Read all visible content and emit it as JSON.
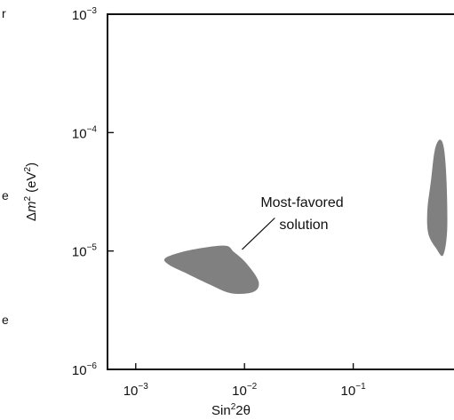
{
  "chart_data": {
    "type": "area",
    "title": "",
    "xlabel": {
      "base": "Sin",
      "sup": "2",
      "rest": "2θ"
    },
    "ylabel": {
      "delta": "Δ",
      "m": "m",
      "sup": "2",
      "unit_open": " (eV",
      "unit_sup": "2",
      "unit_close": ")"
    },
    "x_scale": "log",
    "y_scale": "log",
    "xlim": [
      0.00055,
      1.0
    ],
    "ylim": [
      1e-06,
      0.001
    ],
    "x_ticks": [
      {
        "value": 0.001,
        "base": "10",
        "exp": "−3"
      },
      {
        "value": 0.01,
        "base": "10",
        "exp": "−2"
      },
      {
        "value": 0.1,
        "base": "10",
        "exp": "−1"
      }
    ],
    "y_ticks": [
      {
        "value": 0.001,
        "base": "10",
        "exp": "−3"
      },
      {
        "value": 0.0001,
        "base": "10",
        "exp": "−4"
      },
      {
        "value": 1e-05,
        "base": "10",
        "exp": "−5"
      },
      {
        "value": 1e-06,
        "base": "10",
        "exp": "−6"
      }
    ],
    "grid": false,
    "fill_color": "#808080",
    "regions": [
      {
        "points": [
          [
            0.0019,
            8.8e-06
          ],
          [
            0.0032,
            1.02e-05
          ],
          [
            0.0065,
            1.11e-05
          ],
          [
            0.008,
            9.8e-06
          ],
          [
            0.0105,
            7.8e-06
          ],
          [
            0.0135,
            5.5e-06
          ],
          [
            0.012,
            4.5e-06
          ],
          [
            0.0075,
            4.4e-06
          ],
          [
            0.0048,
            5.2e-06
          ],
          [
            0.003,
            6.4e-06
          ],
          [
            0.002,
            7.7e-06
          ]
        ]
      },
      {
        "points": [
          [
            0.62,
            8.7e-05
          ],
          [
            0.68,
            7.5e-05
          ],
          [
            0.72,
            4e-05
          ],
          [
            0.73,
            1.5e-05
          ],
          [
            0.67,
            9.2e-06
          ],
          [
            0.58,
            1.05e-05
          ],
          [
            0.49,
            1.4e-05
          ],
          [
            0.48,
            2.2e-05
          ],
          [
            0.52,
            4e-05
          ],
          [
            0.56,
            7e-05
          ]
        ]
      }
    ],
    "annotation": {
      "lines": [
        "Most-favored",
        "solution"
      ],
      "arrow_from": [
        0.019,
        1.9e-05
      ],
      "arrow_to": [
        0.0095,
        1.03e-05
      ]
    }
  },
  "edge_marks": [
    "r",
    "e",
    "e"
  ]
}
